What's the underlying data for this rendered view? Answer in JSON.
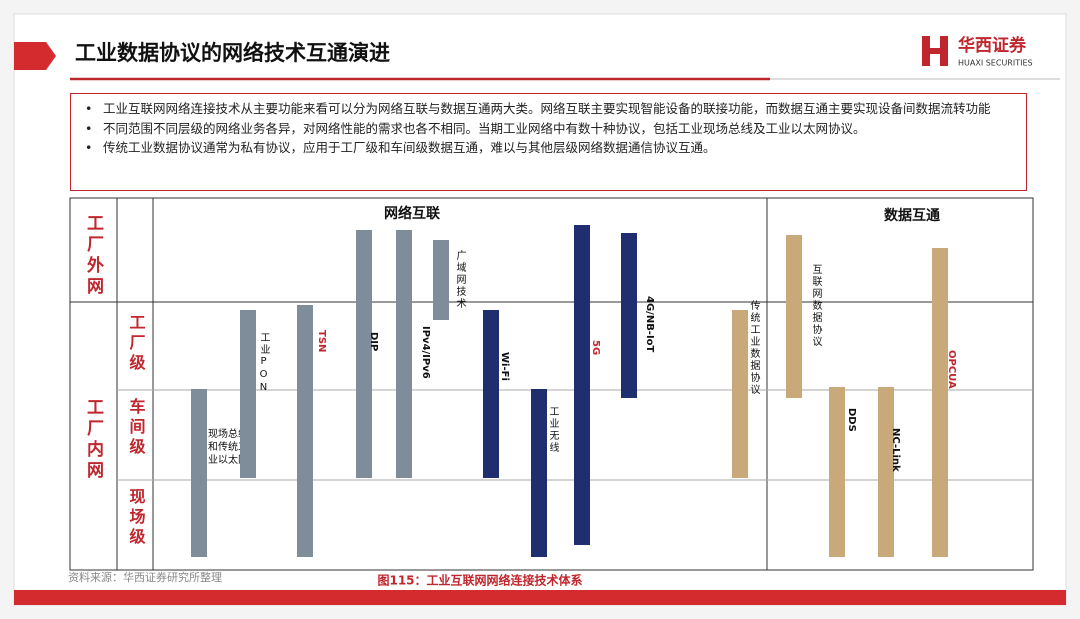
{
  "header": {
    "title": "工业数据协议的网络技术互通演进",
    "logo_cn": "华西证券",
    "logo_en": "HUAXI SECURITIES"
  },
  "bullets": [
    "工业互联网网络连接技术从主要功能来看可以分为网络互联与数据互通两大类。网络互联主要实现智能设备的联接功能，而数据互通主要实现设备间数据流转功能",
    "不同范围不同层级的网络业务各异，对网络性能的需求也各不相同。当期工业网络中有数十种协议，包括工业现场总线及工业以太网协议。",
    "传统工业数据协议通常为私有协议，应用于工厂级和车间级数据互通，难以与其他层级网络数据通信协议互通。"
  ],
  "table": {
    "row_groups": [
      "工厂外网",
      "工厂内网"
    ],
    "levels": [
      "工厂级",
      "车间级",
      "现场级"
    ],
    "sections": [
      "网络互联",
      "数据互通"
    ]
  },
  "bars": [
    {
      "label": "现场总线和传统工业以太网"
    },
    {
      "label": "工业PON"
    },
    {
      "label": "TSN"
    },
    {
      "label": "DIP"
    },
    {
      "label": "IPv4/IPv6"
    },
    {
      "label": "广域网技术"
    },
    {
      "label": "Wi-Fi"
    },
    {
      "label": "工业无线"
    },
    {
      "label": "5G"
    },
    {
      "label": "4G/NB-IoT"
    },
    {
      "label": "传统工业数据协议"
    },
    {
      "label": "互联网数据协议"
    },
    {
      "label": "DDS"
    },
    {
      "label": "NC-Link"
    },
    {
      "label": "OPCUA"
    }
  ],
  "source": "资料来源：华西证券研究所整理",
  "caption": "图115：工业互联网网络连接技术体系"
}
